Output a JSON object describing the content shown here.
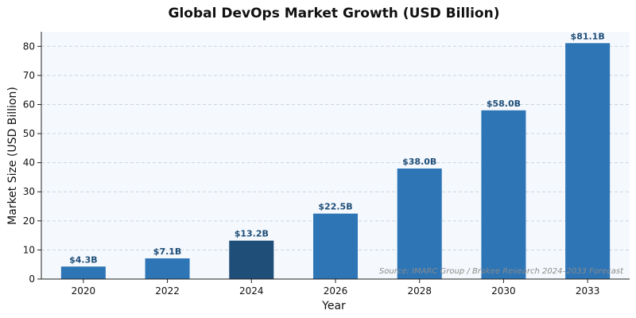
{
  "chart_data": {
    "type": "bar",
    "title": "Global DevOps Market Growth (USD Billion)",
    "xlabel": "Year",
    "ylabel": "Market Size (USD Billion)",
    "categories": [
      "2020",
      "2022",
      "2024",
      "2026",
      "2028",
      "2030",
      "2033"
    ],
    "values": [
      4.3,
      7.1,
      13.2,
      22.5,
      38.0,
      58.0,
      81.1
    ],
    "data_labels": [
      "$4.3B",
      "$7.1B",
      "$13.2B",
      "$22.5B",
      "$38.0B",
      "$58.0B",
      "$81.1B"
    ],
    "highlight_category": "2024",
    "ylim": [
      0,
      85
    ],
    "yticks": [
      0,
      10,
      20,
      30,
      40,
      50,
      60,
      70,
      80
    ],
    "grid": "horizontal dashed",
    "source_note": "Source: IMARC Group / Brokee Research 2024–2033 Forecast",
    "colors": {
      "bar": "#2e75b6",
      "bar_highlight": "#1f4e79",
      "plot_background": "#f5f9fd",
      "grid": "#c9d3dd",
      "data_label": "#1f4e79"
    }
  }
}
